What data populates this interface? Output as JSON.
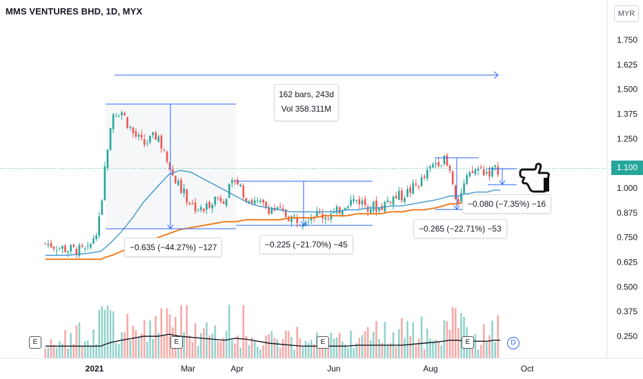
{
  "header": {
    "title": "MMS VENTURES BHD, 1D, MYX",
    "currency": "MYR"
  },
  "last_price": "1.100",
  "measurements": [
    {
      "label": "−0.635 (−44.27%) −127"
    },
    {
      "label": "−0.225 (−21.70%) −45"
    },
    {
      "label": "−0.265 (−22.71%) −53"
    },
    {
      "label": "−0.080 (−7.35%) −16"
    }
  ],
  "range_info": {
    "bars": "162 bars, 243d",
    "vol": "Vol 358.311M"
  },
  "events": {
    "earnings": "E",
    "dividend": "D"
  },
  "chart_data": {
    "type": "line",
    "title": "MMS VENTURES BHD, 1D, MYX",
    "xlabel": "",
    "ylabel": "",
    "currency": "MYR",
    "x_ticks": [
      "2021",
      "Mar",
      "Apr",
      "Jun",
      "Aug",
      "Oct"
    ],
    "y_ticks": [
      "1.750",
      "1.625",
      "1.500",
      "1.375",
      "1.250",
      "1.125",
      "1.000",
      "0.875",
      "0.750",
      "0.625",
      "0.500",
      "0.375",
      "0.250"
    ],
    "y_ticks_visible": [
      "1.750",
      "1.625",
      "1.500",
      "1.375",
      "1.250",
      "1.000",
      "0.875",
      "0.750",
      "0.625",
      "0.500",
      "0.375",
      "0.250"
    ],
    "ylim": [
      0.14,
      1.86
    ],
    "grid": false,
    "last_price": 1.1,
    "series": [
      {
        "name": "",
        "style": "close-approximation",
        "color": "#26a69a",
        "x": [
          "2020-12-01",
          "2020-12-15",
          "2020-12-28",
          "2021-01-05",
          "2021-01-08",
          "2021-01-12",
          "2021-01-18",
          "2021-01-25",
          "2021-02-01",
          "2021-02-10",
          "2021-02-17",
          "2021-02-24",
          "2021-03-03",
          "2021-03-10",
          "2021-03-17",
          "2021-03-24",
          "2021-03-31",
          "2021-04-07",
          "2021-04-14",
          "2021-04-21",
          "2021-04-28",
          "2021-05-05",
          "2021-05-12",
          "2021-05-19",
          "2021-05-26",
          "2021-06-02",
          "2021-06-09",
          "2021-06-16",
          "2021-06-23",
          "2021-06-30",
          "2021-07-07",
          "2021-07-14",
          "2021-07-21",
          "2021-07-28",
          "2021-08-04",
          "2021-08-09",
          "2021-08-13",
          "2021-08-18",
          "2021-08-23",
          "2021-08-30",
          "2021-09-06",
          "2021-09-10",
          "2021-09-14"
        ],
        "values": [
          0.72,
          0.69,
          0.68,
          0.85,
          1.15,
          1.38,
          1.39,
          1.28,
          1.22,
          1.27,
          1.1,
          1.0,
          0.92,
          0.88,
          0.95,
          0.95,
          1.05,
          0.95,
          0.92,
          0.9,
          0.88,
          0.85,
          0.84,
          0.87,
          0.86,
          0.87,
          0.93,
          0.94,
          0.91,
          0.9,
          0.95,
          0.96,
          1.0,
          1.05,
          1.13,
          1.15,
          1.08,
          0.93,
          1.03,
          1.1,
          1.08,
          1.09,
          1.1
        ]
      },
      {
        "name": "",
        "style": "moving-average",
        "color": "#3d96c9",
        "values": [
          0.66,
          0.66,
          0.67,
          0.68,
          0.7,
          0.73,
          0.78,
          0.85,
          0.93,
          1.01,
          1.07,
          1.09,
          1.08,
          1.05,
          1.02,
          0.99,
          0.96,
          0.93,
          0.91,
          0.9,
          0.89,
          0.88,
          0.88,
          0.88,
          0.88,
          0.88,
          0.89,
          0.89,
          0.9,
          0.9,
          0.91,
          0.91,
          0.92,
          0.93,
          0.94,
          0.95,
          0.96,
          0.96,
          0.97,
          0.98,
          0.98,
          0.99,
          0.99
        ]
      },
      {
        "name": "",
        "style": "moving-average",
        "color": "#f07c1f",
        "values": [
          0.64,
          0.64,
          0.64,
          0.64,
          0.65,
          0.66,
          0.68,
          0.7,
          0.72,
          0.75,
          0.77,
          0.79,
          0.8,
          0.81,
          0.82,
          0.83,
          0.83,
          0.84,
          0.84,
          0.84,
          0.84,
          0.85,
          0.85,
          0.85,
          0.86,
          0.86,
          0.86,
          0.87,
          0.87,
          0.87,
          0.88,
          0.88,
          0.89,
          0.89,
          0.9,
          0.91,
          0.92,
          0.92,
          0.93,
          0.93,
          0.94,
          0.94,
          0.95
        ]
      },
      {
        "name": "",
        "style": "volume-moving-average",
        "color": "#131722",
        "values": [
          0.2,
          0.2,
          0.2,
          0.2,
          0.21,
          0.22,
          0.23,
          0.24,
          0.25,
          0.25,
          0.26,
          0.25,
          0.245,
          0.24,
          0.235,
          0.23,
          0.24,
          0.235,
          0.225,
          0.215,
          0.21,
          0.205,
          0.2,
          0.2,
          0.2,
          0.2,
          0.2,
          0.205,
          0.205,
          0.205,
          0.205,
          0.205,
          0.21,
          0.215,
          0.22,
          0.225,
          0.23,
          0.23,
          0.225,
          0.225,
          0.225,
          0.23,
          0.23
        ]
      }
    ]
  }
}
